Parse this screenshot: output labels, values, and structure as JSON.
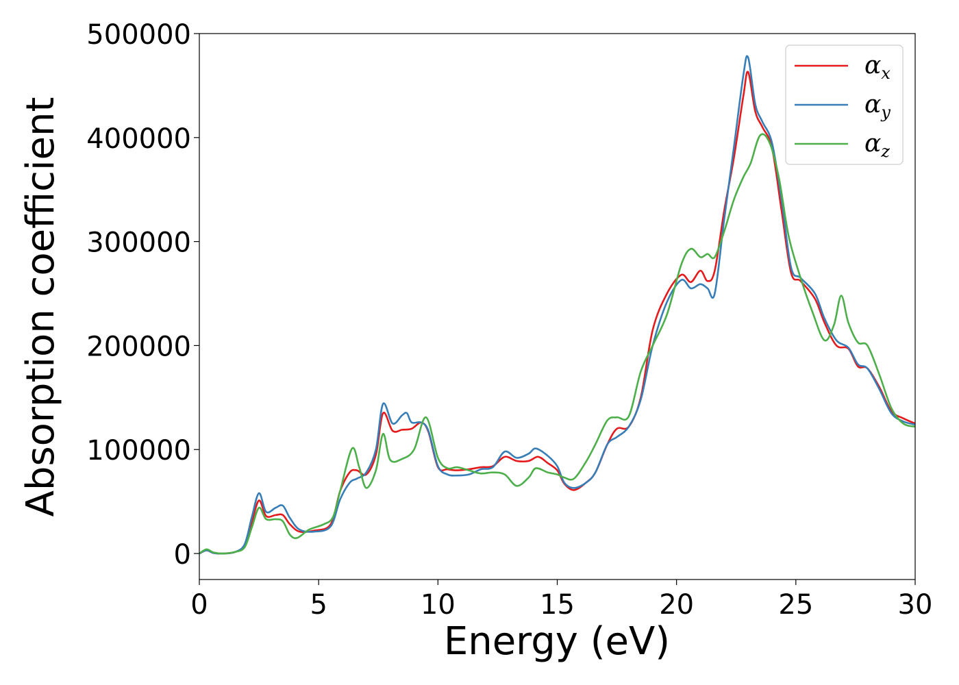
{
  "chart_data": {
    "type": "line",
    "xlabel": "Energy (eV)",
    "ylabel": "Absorption coefficient",
    "xlim": [
      0,
      30
    ],
    "ylim": [
      -25000,
      500000
    ],
    "xticks": [
      0,
      5,
      10,
      15,
      20,
      25,
      30
    ],
    "yticks": [
      0,
      100000,
      200000,
      300000,
      400000,
      500000
    ],
    "grid": false,
    "legend_position": "top-right",
    "series": [
      {
        "name": "α_x",
        "symbol": "α",
        "subscript": "x",
        "color": "#e41a1c",
        "x": [
          0,
          0.3,
          0.6,
          1.0,
          1.5,
          1.9,
          2.2,
          2.5,
          2.8,
          3.2,
          3.5,
          3.8,
          4.2,
          4.8,
          5.5,
          5.9,
          6.3,
          6.6,
          7.0,
          7.4,
          7.7,
          8.1,
          8.5,
          8.9,
          9.3,
          9.6,
          10.0,
          10.4,
          10.8,
          11.3,
          11.8,
          12.3,
          12.8,
          13.3,
          13.8,
          14.2,
          14.6,
          15.0,
          15.3,
          15.7,
          16.2,
          16.6,
          17.1,
          17.5,
          18.0,
          18.5,
          19.0,
          19.6,
          20.2,
          20.6,
          21.0,
          21.3,
          21.6,
          22.0,
          22.4,
          22.8,
          23.0,
          23.3,
          23.6,
          24.0,
          24.4,
          24.8,
          25.2,
          25.8,
          26.2,
          26.7,
          27.2,
          27.6,
          28.0,
          28.5,
          29.0,
          29.5,
          30.0
        ],
        "y": [
          0,
          3000,
          500,
          0,
          1500,
          8000,
          30000,
          51000,
          36000,
          37000,
          37000,
          28000,
          21000,
          22000,
          28000,
          60000,
          78000,
          80000,
          76000,
          95000,
          135000,
          118000,
          119000,
          120000,
          126000,
          117000,
          83000,
          81000,
          80000,
          81000,
          83000,
          84000,
          93000,
          89000,
          89000,
          93000,
          87000,
          80000,
          67000,
          61000,
          68000,
          78000,
          105000,
          120000,
          122000,
          150000,
          215000,
          250000,
          268000,
          261000,
          272000,
          262000,
          272000,
          330000,
          380000,
          440000,
          463000,
          425000,
          410000,
          390000,
          330000,
          270000,
          262000,
          245000,
          222000,
          200000,
          197000,
          180000,
          178000,
          160000,
          137000,
          130000,
          125000
        ]
      },
      {
        "name": "α_y",
        "symbol": "α",
        "subscript": "y",
        "color": "#377eb8",
        "x": [
          0,
          0.3,
          0.6,
          1.0,
          1.5,
          1.9,
          2.2,
          2.5,
          2.8,
          3.2,
          3.5,
          3.8,
          4.2,
          4.8,
          5.5,
          5.9,
          6.3,
          6.6,
          7.0,
          7.4,
          7.7,
          8.1,
          8.5,
          8.7,
          8.9,
          9.3,
          9.6,
          10.0,
          10.4,
          10.8,
          11.3,
          11.8,
          12.3,
          12.8,
          13.3,
          13.8,
          14.1,
          14.6,
          15.0,
          15.3,
          15.7,
          16.2,
          16.6,
          17.1,
          17.5,
          18.0,
          18.5,
          19.0,
          19.6,
          20.2,
          20.6,
          21.0,
          21.3,
          21.6,
          22.0,
          22.4,
          22.8,
          23.0,
          23.3,
          23.6,
          24.0,
          24.4,
          24.8,
          25.2,
          25.8,
          26.2,
          26.7,
          27.2,
          27.6,
          28.0,
          28.5,
          29.0,
          29.5,
          30.0
        ],
        "y": [
          0,
          3000,
          500,
          0,
          1500,
          9000,
          35000,
          58000,
          40000,
          44000,
          46000,
          34000,
          23000,
          21000,
          26000,
          52000,
          68000,
          72000,
          78000,
          100000,
          144000,
          125000,
          133000,
          135000,
          126000,
          126000,
          118000,
          84000,
          76000,
          75000,
          76000,
          81000,
          83000,
          98000,
          92000,
          96000,
          101000,
          94000,
          84000,
          68000,
          63000,
          68000,
          78000,
          105000,
          112000,
          122000,
          148000,
          200000,
          242000,
          263000,
          255000,
          259000,
          255000,
          250000,
          322000,
          390000,
          460000,
          477000,
          432000,
          415000,
          395000,
          340000,
          275000,
          265000,
          250000,
          226000,
          205000,
          198000,
          182000,
          178000,
          158000,
          135000,
          127000,
          124000
        ]
      },
      {
        "name": "α_z",
        "symbol": "α",
        "subscript": "z",
        "color": "#4daf4a",
        "x": [
          0,
          0.3,
          0.6,
          1.0,
          1.5,
          1.9,
          2.2,
          2.5,
          2.8,
          3.2,
          3.5,
          3.8,
          4.1,
          4.6,
          5.2,
          5.6,
          5.9,
          6.4,
          6.7,
          7.0,
          7.4,
          7.7,
          8.0,
          8.5,
          9.0,
          9.5,
          10.0,
          10.4,
          10.8,
          11.3,
          11.8,
          12.3,
          12.8,
          13.3,
          13.8,
          14.1,
          14.6,
          15.0,
          15.3,
          15.7,
          16.2,
          16.6,
          17.1,
          17.5,
          18.0,
          18.5,
          19.0,
          19.6,
          20.2,
          20.6,
          21.0,
          21.3,
          21.6,
          22.0,
          22.4,
          22.8,
          23.1,
          23.5,
          23.9,
          24.3,
          24.7,
          25.2,
          25.7,
          26.2,
          26.6,
          26.9,
          27.2,
          27.6,
          28.0,
          28.5,
          29.0,
          29.5,
          30.0
        ],
        "y": [
          0,
          4000,
          1000,
          0,
          1500,
          6000,
          25000,
          44000,
          33000,
          33000,
          31000,
          18000,
          15000,
          23000,
          28000,
          35000,
          60000,
          101000,
          83000,
          63000,
          80000,
          115000,
          90000,
          91000,
          100000,
          131000,
          92000,
          82000,
          83000,
          80000,
          77000,
          78000,
          76000,
          65000,
          73000,
          82000,
          78000,
          76000,
          73000,
          72000,
          88000,
          105000,
          128000,
          131000,
          132000,
          175000,
          200000,
          230000,
          278000,
          293000,
          285000,
          288000,
          285000,
          310000,
          340000,
          362000,
          375000,
          402000,
          395000,
          360000,
          305000,
          265000,
          232000,
          205000,
          220000,
          248000,
          222000,
          203000,
          200000,
          172000,
          140000,
          125000,
          122000
        ]
      }
    ]
  }
}
